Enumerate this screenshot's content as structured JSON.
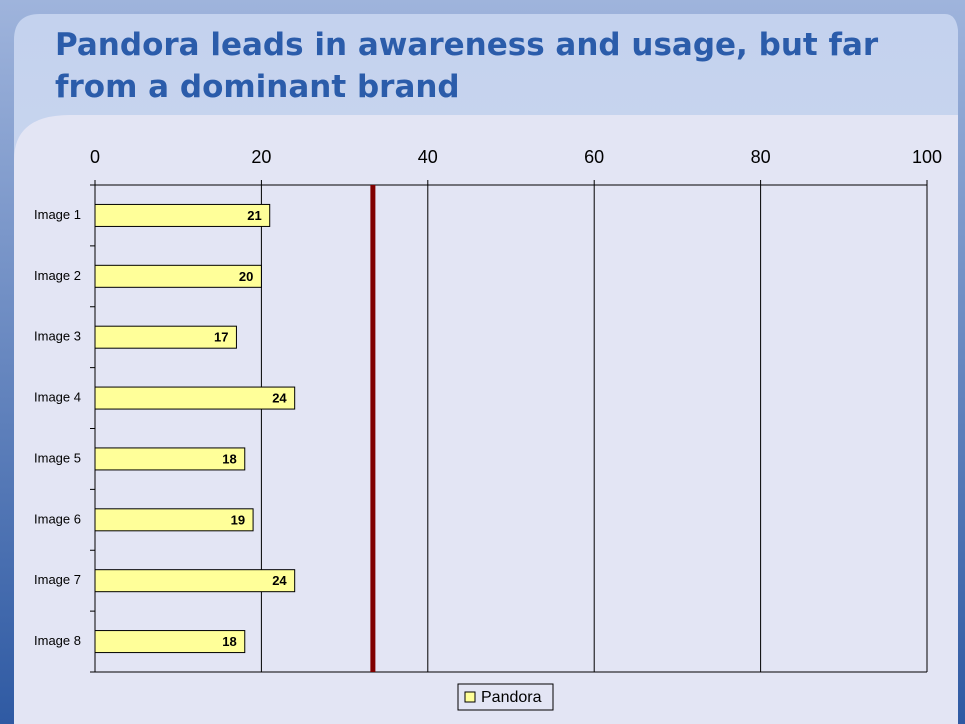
{
  "chart_data": {
    "type": "bar",
    "orientation": "horizontal",
    "title": "Pandora leads in awareness and usage, but far from a dominant brand",
    "categories": [
      "Image 1",
      "Image 2",
      "Image 3",
      "Image 4",
      "Image 5",
      "Image 6",
      "Image 7",
      "Image 8"
    ],
    "series": [
      {
        "name": "Pandora",
        "color": "#ffff99",
        "values": [
          21,
          20,
          17,
          24,
          18,
          19,
          24,
          18
        ]
      }
    ],
    "xlim": [
      0,
      100
    ],
    "xticks": [
      0,
      20,
      40,
      60,
      80,
      100
    ],
    "grid": true,
    "reference_line": {
      "value": 33.4,
      "color": "#800000"
    },
    "legend": "bottom"
  }
}
